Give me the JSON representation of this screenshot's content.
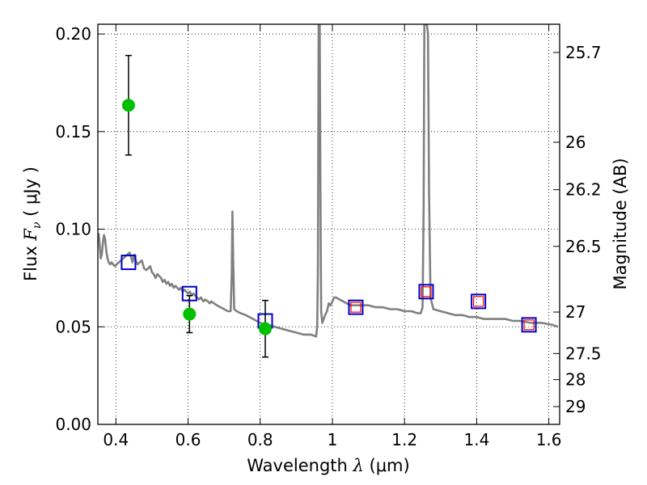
{
  "chart_data": {
    "type": "scatter",
    "title": "",
    "xlabel_prefix": "Wavelength  ",
    "xlabel_symbol": "λ",
    "xlabel_units": " (μm)",
    "ylabel_prefix": "Flux  ",
    "ylabel_symbol": "F",
    "ylabel_sub": "ν",
    "ylabel_units": "  ( μJy )",
    "ylabel_right": "Magnitude (AB)",
    "xlim": [
      0.35,
      1.63
    ],
    "ylim": [
      0.0,
      0.205
    ],
    "grid": true,
    "x_ticks": [
      {
        "value": 0.4,
        "label": "0.4"
      },
      {
        "value": 0.6,
        "label": "0.6"
      },
      {
        "value": 0.8,
        "label": "0.8"
      },
      {
        "value": 1.0,
        "label": "1"
      },
      {
        "value": 1.2,
        "label": "1.2"
      },
      {
        "value": 1.4,
        "label": "1.4"
      },
      {
        "value": 1.6,
        "label": "1.6"
      }
    ],
    "y_ticks": [
      {
        "value": 0.0,
        "label": "0.00"
      },
      {
        "value": 0.05,
        "label": "0.05"
      },
      {
        "value": 0.1,
        "label": "0.10"
      },
      {
        "value": 0.15,
        "label": "0.15"
      },
      {
        "value": 0.2,
        "label": "0.20"
      }
    ],
    "mag_ticks": [
      {
        "value": 25.7,
        "label": "25.7"
      },
      {
        "value": 26,
        "label": "26"
      },
      {
        "value": 26.2,
        "label": "26.2"
      },
      {
        "value": 26.5,
        "label": "26.5"
      },
      {
        "value": 27,
        "label": "27"
      },
      {
        "value": 27.5,
        "label": "27.5"
      },
      {
        "value": 28,
        "label": "28"
      },
      {
        "value": 29,
        "label": "29"
      }
    ],
    "series": [
      {
        "kind": "line",
        "color": "#808080",
        "x": [
          0.352,
          0.355,
          0.358,
          0.361,
          0.364,
          0.367,
          0.37,
          0.374,
          0.377,
          0.38,
          0.384,
          0.388,
          0.392,
          0.397,
          0.402,
          0.408,
          0.414,
          0.42,
          0.426,
          0.432,
          0.438,
          0.442,
          0.446,
          0.451,
          0.455,
          0.46,
          0.466,
          0.472,
          0.478,
          0.484,
          0.49,
          0.495,
          0.5,
          0.505,
          0.51,
          0.515,
          0.52,
          0.525,
          0.53,
          0.535,
          0.54,
          0.545,
          0.55,
          0.555,
          0.56,
          0.565,
          0.57,
          0.575,
          0.58,
          0.585,
          0.59,
          0.595,
          0.6,
          0.605,
          0.61,
          0.615,
          0.62,
          0.625,
          0.63,
          0.636,
          0.642,
          0.648,
          0.655,
          0.66,
          0.665,
          0.672,
          0.68,
          0.69,
          0.7,
          0.71,
          0.718,
          0.721,
          0.723,
          0.725,
          0.728,
          0.735,
          0.745,
          0.76,
          0.78,
          0.8,
          0.82,
          0.84,
          0.86,
          0.88,
          0.9,
          0.92,
          0.94,
          0.955,
          0.958,
          0.96,
          0.962,
          0.965,
          0.967,
          0.969,
          0.972,
          0.976,
          0.98,
          0.985,
          0.99,
          0.995,
          1.0,
          1.005,
          1.01,
          1.02,
          1.03,
          1.04,
          1.05,
          1.06,
          1.08,
          1.1,
          1.12,
          1.14,
          1.16,
          1.18,
          1.2,
          1.22,
          1.235,
          1.245,
          1.25,
          1.253,
          1.255,
          1.258,
          1.26,
          1.262,
          1.265,
          1.268,
          1.272,
          1.28,
          1.3,
          1.32,
          1.34,
          1.36,
          1.38,
          1.4,
          1.42,
          1.45,
          1.48,
          1.5,
          1.52,
          1.55,
          1.58,
          1.61,
          1.625
        ],
        "y": [
          0.098,
          0.092,
          0.085,
          0.087,
          0.093,
          0.097,
          0.095,
          0.088,
          0.085,
          0.083,
          0.082,
          0.083,
          0.082,
          0.081,
          0.082,
          0.083,
          0.084,
          0.085,
          0.086,
          0.087,
          0.088,
          0.086,
          0.083,
          0.087,
          0.084,
          0.082,
          0.083,
          0.084,
          0.08,
          0.079,
          0.08,
          0.081,
          0.078,
          0.077,
          0.075,
          0.077,
          0.076,
          0.075,
          0.073,
          0.074,
          0.072,
          0.073,
          0.071,
          0.072,
          0.07,
          0.071,
          0.07,
          0.069,
          0.07,
          0.068,
          0.069,
          0.068,
          0.067,
          0.068,
          0.066,
          0.067,
          0.066,
          0.065,
          0.064,
          0.065,
          0.063,
          0.064,
          0.063,
          0.062,
          0.063,
          0.062,
          0.061,
          0.06,
          0.059,
          0.058,
          0.058,
          0.075,
          0.109,
          0.085,
          0.059,
          0.058,
          0.057,
          0.056,
          0.054,
          0.052,
          0.051,
          0.05,
          0.049,
          0.048,
          0.047,
          0.046,
          0.046,
          0.045,
          0.05,
          0.08,
          0.205,
          0.205,
          0.12,
          0.058,
          0.052,
          0.054,
          0.056,
          0.058,
          0.062,
          0.061,
          0.063,
          0.065,
          0.065,
          0.064,
          0.063,
          0.062,
          0.061,
          0.061,
          0.061,
          0.061,
          0.06,
          0.06,
          0.059,
          0.059,
          0.058,
          0.058,
          0.057,
          0.057,
          0.06,
          0.11,
          0.205,
          0.205,
          0.205,
          0.205,
          0.2,
          0.12,
          0.065,
          0.059,
          0.058,
          0.057,
          0.056,
          0.056,
          0.055,
          0.055,
          0.054,
          0.054,
          0.054,
          0.053,
          0.053,
          0.052,
          0.052,
          0.051,
          0.05
        ]
      },
      {
        "kind": "scatter",
        "marker": "square",
        "color": "#0000cc",
        "x": [
          0.435,
          0.604,
          0.814,
          1.065,
          1.26,
          1.405,
          1.545
        ],
        "y": [
          0.083,
          0.067,
          0.053,
          0.06,
          0.068,
          0.063,
          0.051
        ]
      },
      {
        "kind": "scatter",
        "marker": "square",
        "color": "#ff0000",
        "x": [
          1.065,
          1.26,
          1.405,
          1.545
        ],
        "y": [
          0.06,
          0.068,
          0.063,
          0.051
        ]
      },
      {
        "kind": "scatter",
        "marker": "circle",
        "color": "#00c000",
        "x": [
          0.435,
          0.604,
          0.814
        ],
        "y": [
          0.1635,
          0.0565,
          0.049
        ],
        "yerr_low": [
          0.0255,
          0.0095,
          0.0145
        ],
        "yerr_high": [
          0.0255,
          0.0095,
          0.0145
        ]
      }
    ]
  }
}
